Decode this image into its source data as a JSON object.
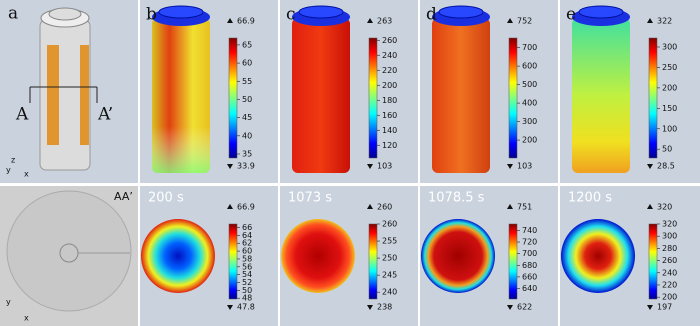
{
  "panel_a": {
    "label": "a",
    "section_left": "A",
    "section_right": "A’",
    "axes": [
      "z",
      "y",
      "x"
    ]
  },
  "section_view": {
    "label": "AA’",
    "axes": [
      "y",
      "x"
    ]
  },
  "top_row": [
    {
      "label": "b",
      "max": 66.9,
      "min": 33.9,
      "ticks": [
        35,
        40,
        45,
        50,
        55,
        60,
        65
      ]
    },
    {
      "label": "c",
      "max": 263,
      "min": 103,
      "ticks": [
        120,
        140,
        160,
        180,
        200,
        220,
        240,
        260
      ]
    },
    {
      "label": "d",
      "max": 752,
      "min": 103,
      "ticks": [
        200,
        300,
        400,
        500,
        600,
        700
      ]
    },
    {
      "label": "e",
      "max": 322,
      "min": 28.5,
      "ticks": [
        50,
        100,
        150,
        200,
        250,
        300
      ]
    }
  ],
  "bottom_row": [
    {
      "time": "200 s",
      "max": 66.9,
      "min": 47.8,
      "ticks": [
        48,
        50,
        52,
        54,
        56,
        58,
        60,
        62,
        64,
        66
      ]
    },
    {
      "time": "1073 s",
      "max": 260,
      "min": 238,
      "ticks": [
        240,
        245,
        250,
        255,
        260
      ]
    },
    {
      "time": "1078.5 s",
      "max": 751,
      "min": 622,
      "ticks": [
        640,
        660,
        680,
        700,
        720,
        740
      ]
    },
    {
      "time": "1200 s",
      "max": 320,
      "min": 197,
      "ticks": [
        200,
        220,
        240,
        260,
        280,
        300,
        320
      ]
    }
  ]
}
